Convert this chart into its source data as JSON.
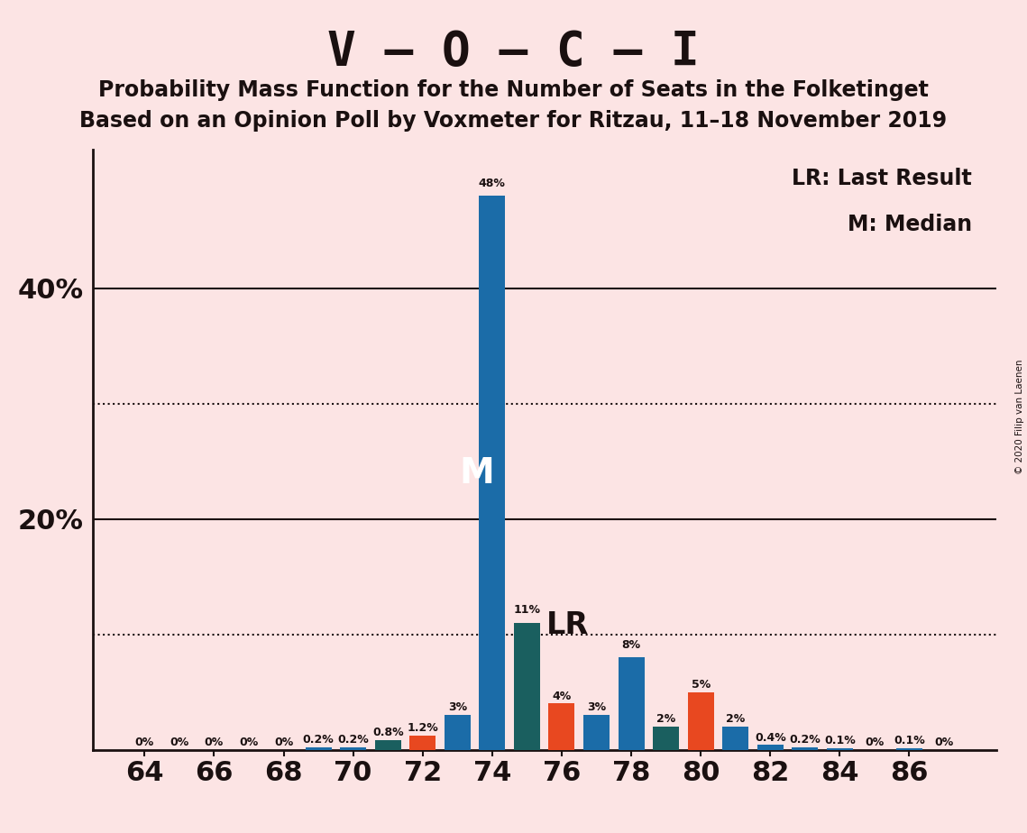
{
  "title": "V – O – C – I",
  "subtitle1": "Probability Mass Function for the Number of Seats in the Folketinget",
  "subtitle2": "Based on an Opinion Poll by Voxmeter for Ritzau, 11–18 November 2019",
  "copyright": "© 2020 Filip van Laenen",
  "legend_lr": "LR: Last Result",
  "legend_m": "M: Median",
  "background_color": "#fce4e4",
  "bar_color_blue": "#1b6ca8",
  "bar_color_teal": "#1a5f5f",
  "bar_color_orange": "#e84820",
  "seat_data": [
    [
      64,
      0.0,
      "blue"
    ],
    [
      65,
      0.0,
      "blue"
    ],
    [
      66,
      0.0,
      "blue"
    ],
    [
      67,
      0.0,
      "blue"
    ],
    [
      68,
      0.0,
      "blue"
    ],
    [
      69,
      0.2,
      "blue"
    ],
    [
      70,
      0.2,
      "blue"
    ],
    [
      71,
      0.8,
      "teal"
    ],
    [
      72,
      1.2,
      "orange"
    ],
    [
      73,
      3.0,
      "blue"
    ],
    [
      74,
      48.0,
      "blue"
    ],
    [
      75,
      11.0,
      "teal"
    ],
    [
      76,
      4.0,
      "orange"
    ],
    [
      77,
      3.0,
      "blue"
    ],
    [
      78,
      8.0,
      "blue"
    ],
    [
      79,
      2.0,
      "teal"
    ],
    [
      80,
      5.0,
      "orange"
    ],
    [
      81,
      2.0,
      "blue"
    ],
    [
      82,
      0.4,
      "blue"
    ],
    [
      83,
      0.2,
      "blue"
    ],
    [
      84,
      0.1,
      "blue"
    ],
    [
      85,
      0.0,
      "blue"
    ],
    [
      86,
      0.1,
      "blue"
    ],
    [
      87,
      0.0,
      "blue"
    ]
  ],
  "label_map": {
    "64": "0%",
    "65": "0%",
    "66": "0%",
    "67": "0%",
    "68": "0%",
    "69": "0.2%",
    "70": "0.2%",
    "71": "0.8%",
    "72": "1.2%",
    "73": "3%",
    "74": "48%",
    "75": "11%",
    "76": "4%",
    "77": "3%",
    "78": "8%",
    "79": "2%",
    "80": "5%",
    "81": "2%",
    "82": "0.4%",
    "83": "0.2%",
    "84": "0.1%",
    "85": "0%",
    "86": "0.1%",
    "87": "0%"
  },
  "median_seat": 74,
  "lr_seat": 75,
  "xlim": [
    62.5,
    88.5
  ],
  "xticks": [
    64,
    66,
    68,
    70,
    72,
    74,
    76,
    78,
    80,
    82,
    84,
    86
  ],
  "ylim": [
    0,
    52
  ],
  "bar_width": 0.75,
  "title_fontsize": 38,
  "subtitle_fontsize": 17,
  "axis_tick_fontsize": 22,
  "label_fontsize": 9,
  "legend_fontsize": 17
}
